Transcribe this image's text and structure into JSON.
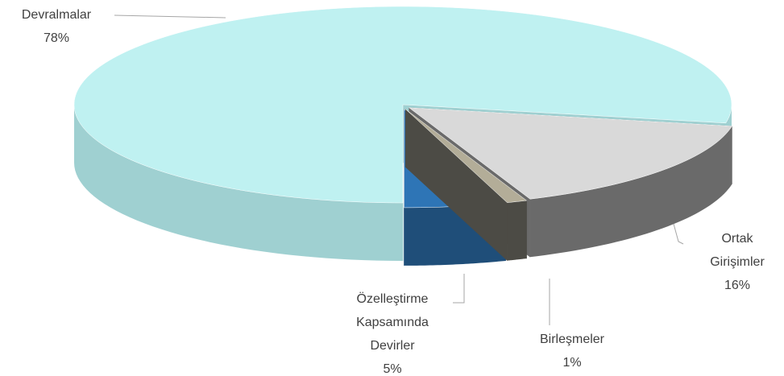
{
  "chart_data": {
    "type": "pie3d",
    "categories": [
      "Devralmalar",
      "Ortak Girişimler",
      "Birleşmeler",
      "Özelleştirme Kapsamında Devirler"
    ],
    "values": [
      78,
      16,
      1,
      5
    ],
    "value_labels": [
      "78%",
      "16%",
      "1%",
      "5%"
    ],
    "colors": [
      "#bff1f1",
      "#d9d9d9",
      "#b3ad98",
      "#2e75b6"
    ],
    "side_colors": [
      "#9fd0d1",
      "#6a6a6a",
      "#4c4b45",
      "#1f4e79"
    ]
  }
}
